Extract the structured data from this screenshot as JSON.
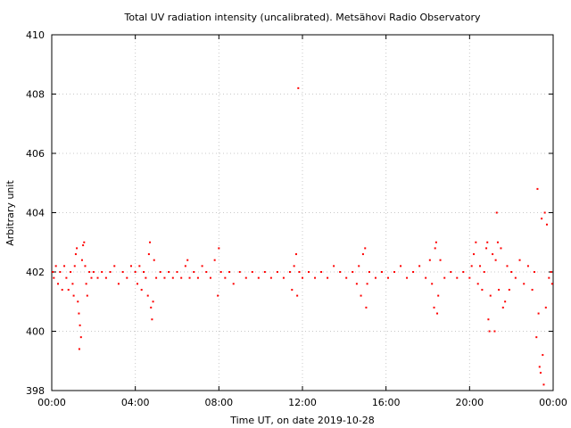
{
  "chart_data": {
    "type": "scatter",
    "title": "Total UV radiation intensity (uncalibrated). Metsähovi Radio Observatory",
    "xlabel": "Time UT, on date 2019-10-28",
    "ylabel": "Arbitrary unit",
    "x_unit": "hours UT",
    "xlim": [
      0,
      24
    ],
    "ylim": [
      398,
      410
    ],
    "x_ticks": [
      {
        "value": 0,
        "label": "00:00"
      },
      {
        "value": 4,
        "label": "04:00"
      },
      {
        "value": 8,
        "label": "08:00"
      },
      {
        "value": 12,
        "label": "12:00"
      },
      {
        "value": 16,
        "label": "16:00"
      },
      {
        "value": 20,
        "label": "20:00"
      },
      {
        "value": 24,
        "label": "00:00"
      }
    ],
    "y_ticks": [
      {
        "value": 398,
        "label": "398"
      },
      {
        "value": 400,
        "label": "400"
      },
      {
        "value": 402,
        "label": "402"
      },
      {
        "value": 404,
        "label": "404"
      },
      {
        "value": 406,
        "label": "406"
      },
      {
        "value": 408,
        "label": "408"
      },
      {
        "value": 410,
        "label": "410"
      }
    ],
    "grid": true,
    "marker_color": "#ff0000",
    "series": [
      {
        "values_note": "",
        "points": [
          [
            0.05,
            402.0
          ],
          [
            0.1,
            401.8
          ],
          [
            0.2,
            402.2
          ],
          [
            0.3,
            401.6
          ],
          [
            0.4,
            402.0
          ],
          [
            0.5,
            401.4
          ],
          [
            0.6,
            402.2
          ],
          [
            0.7,
            401.8
          ],
          [
            0.8,
            401.4
          ],
          [
            0.9,
            402.0
          ],
          [
            1.0,
            401.6
          ],
          [
            1.05,
            401.2
          ],
          [
            1.1,
            402.2
          ],
          [
            1.15,
            402.6
          ],
          [
            1.2,
            402.8
          ],
          [
            1.25,
            401.0
          ],
          [
            1.3,
            400.6
          ],
          [
            1.32,
            399.4
          ],
          [
            1.35,
            400.2
          ],
          [
            1.4,
            399.8
          ],
          [
            1.45,
            402.4
          ],
          [
            1.5,
            402.9
          ],
          [
            1.55,
            403.0
          ],
          [
            1.6,
            402.2
          ],
          [
            1.65,
            401.6
          ],
          [
            1.7,
            401.2
          ],
          [
            1.8,
            402.0
          ],
          [
            1.9,
            401.8
          ],
          [
            2.0,
            402.0
          ],
          [
            2.2,
            401.8
          ],
          [
            2.4,
            402.0
          ],
          [
            2.6,
            401.8
          ],
          [
            2.8,
            402.0
          ],
          [
            3.0,
            402.2
          ],
          [
            3.2,
            401.6
          ],
          [
            3.4,
            402.0
          ],
          [
            3.6,
            401.8
          ],
          [
            3.8,
            402.2
          ],
          [
            4.0,
            402.0
          ],
          [
            4.1,
            401.6
          ],
          [
            4.2,
            402.2
          ],
          [
            4.3,
            401.4
          ],
          [
            4.4,
            402.0
          ],
          [
            4.5,
            401.8
          ],
          [
            4.6,
            401.2
          ],
          [
            4.65,
            402.6
          ],
          [
            4.7,
            403.0
          ],
          [
            4.75,
            400.8
          ],
          [
            4.8,
            400.4
          ],
          [
            4.85,
            401.0
          ],
          [
            4.9,
            402.4
          ],
          [
            5.0,
            401.8
          ],
          [
            5.2,
            402.0
          ],
          [
            5.4,
            401.8
          ],
          [
            5.6,
            402.0
          ],
          [
            5.8,
            401.8
          ],
          [
            6.0,
            402.0
          ],
          [
            6.2,
            401.8
          ],
          [
            6.4,
            402.2
          ],
          [
            6.5,
            402.4
          ],
          [
            6.6,
            401.8
          ],
          [
            6.8,
            402.0
          ],
          [
            7.0,
            401.8
          ],
          [
            7.2,
            402.2
          ],
          [
            7.4,
            402.0
          ],
          [
            7.6,
            401.8
          ],
          [
            7.8,
            402.4
          ],
          [
            7.95,
            401.2
          ],
          [
            8.0,
            402.8
          ],
          [
            8.1,
            402.0
          ],
          [
            8.3,
            401.8
          ],
          [
            8.5,
            402.0
          ],
          [
            8.7,
            401.6
          ],
          [
            9.0,
            402.0
          ],
          [
            9.3,
            401.8
          ],
          [
            9.6,
            402.0
          ],
          [
            9.9,
            401.8
          ],
          [
            10.2,
            402.0
          ],
          [
            10.5,
            401.8
          ],
          [
            10.8,
            402.0
          ],
          [
            11.1,
            401.8
          ],
          [
            11.4,
            402.0
          ],
          [
            11.5,
            401.4
          ],
          [
            11.6,
            402.2
          ],
          [
            11.7,
            402.6
          ],
          [
            11.75,
            401.2
          ],
          [
            11.8,
            408.2
          ],
          [
            11.85,
            402.0
          ],
          [
            12.0,
            401.8
          ],
          [
            12.3,
            402.0
          ],
          [
            12.6,
            401.8
          ],
          [
            12.9,
            402.0
          ],
          [
            13.2,
            401.8
          ],
          [
            13.5,
            402.2
          ],
          [
            13.8,
            402.0
          ],
          [
            14.1,
            401.8
          ],
          [
            14.4,
            402.0
          ],
          [
            14.6,
            401.6
          ],
          [
            14.7,
            402.2
          ],
          [
            14.8,
            401.2
          ],
          [
            14.9,
            402.6
          ],
          [
            15.0,
            402.8
          ],
          [
            15.05,
            400.8
          ],
          [
            15.1,
            401.6
          ],
          [
            15.2,
            402.0
          ],
          [
            15.5,
            401.8
          ],
          [
            15.8,
            402.0
          ],
          [
            16.1,
            401.8
          ],
          [
            16.4,
            402.0
          ],
          [
            16.7,
            402.2
          ],
          [
            17.0,
            401.8
          ],
          [
            17.3,
            402.0
          ],
          [
            17.6,
            402.2
          ],
          [
            17.9,
            401.8
          ],
          [
            18.1,
            402.4
          ],
          [
            18.2,
            401.6
          ],
          [
            18.3,
            400.8
          ],
          [
            18.35,
            402.8
          ],
          [
            18.4,
            403.0
          ],
          [
            18.45,
            400.6
          ],
          [
            18.5,
            401.2
          ],
          [
            18.6,
            402.4
          ],
          [
            18.8,
            401.8
          ],
          [
            19.1,
            402.0
          ],
          [
            19.4,
            401.8
          ],
          [
            19.7,
            402.0
          ],
          [
            20.0,
            401.8
          ],
          [
            20.1,
            402.2
          ],
          [
            20.2,
            402.6
          ],
          [
            20.3,
            403.0
          ],
          [
            20.4,
            401.6
          ],
          [
            20.5,
            402.2
          ],
          [
            20.6,
            401.4
          ],
          [
            20.7,
            402.0
          ],
          [
            20.8,
            402.8
          ],
          [
            20.85,
            403.0
          ],
          [
            20.9,
            400.4
          ],
          [
            20.95,
            400.0
          ],
          [
            21.0,
            401.2
          ],
          [
            21.1,
            402.6
          ],
          [
            21.2,
            400.0
          ],
          [
            21.25,
            402.4
          ],
          [
            21.3,
            404.0
          ],
          [
            21.35,
            403.0
          ],
          [
            21.4,
            401.4
          ],
          [
            21.5,
            402.8
          ],
          [
            21.6,
            400.8
          ],
          [
            21.7,
            401.0
          ],
          [
            21.8,
            402.2
          ],
          [
            21.9,
            401.4
          ],
          [
            22.0,
            402.0
          ],
          [
            22.2,
            401.8
          ],
          [
            22.4,
            402.4
          ],
          [
            22.6,
            401.6
          ],
          [
            22.8,
            402.2
          ],
          [
            23.0,
            401.4
          ],
          [
            23.1,
            402.0
          ],
          [
            23.2,
            399.8
          ],
          [
            23.25,
            404.8
          ],
          [
            23.3,
            400.6
          ],
          [
            23.35,
            398.8
          ],
          [
            23.4,
            398.6
          ],
          [
            23.45,
            403.8
          ],
          [
            23.5,
            399.2
          ],
          [
            23.55,
            398.2
          ],
          [
            23.6,
            404.0
          ],
          [
            23.65,
            400.8
          ],
          [
            23.7,
            403.6
          ],
          [
            23.8,
            401.8
          ],
          [
            23.9,
            402.0
          ],
          [
            23.95,
            401.6
          ]
        ]
      }
    ]
  }
}
